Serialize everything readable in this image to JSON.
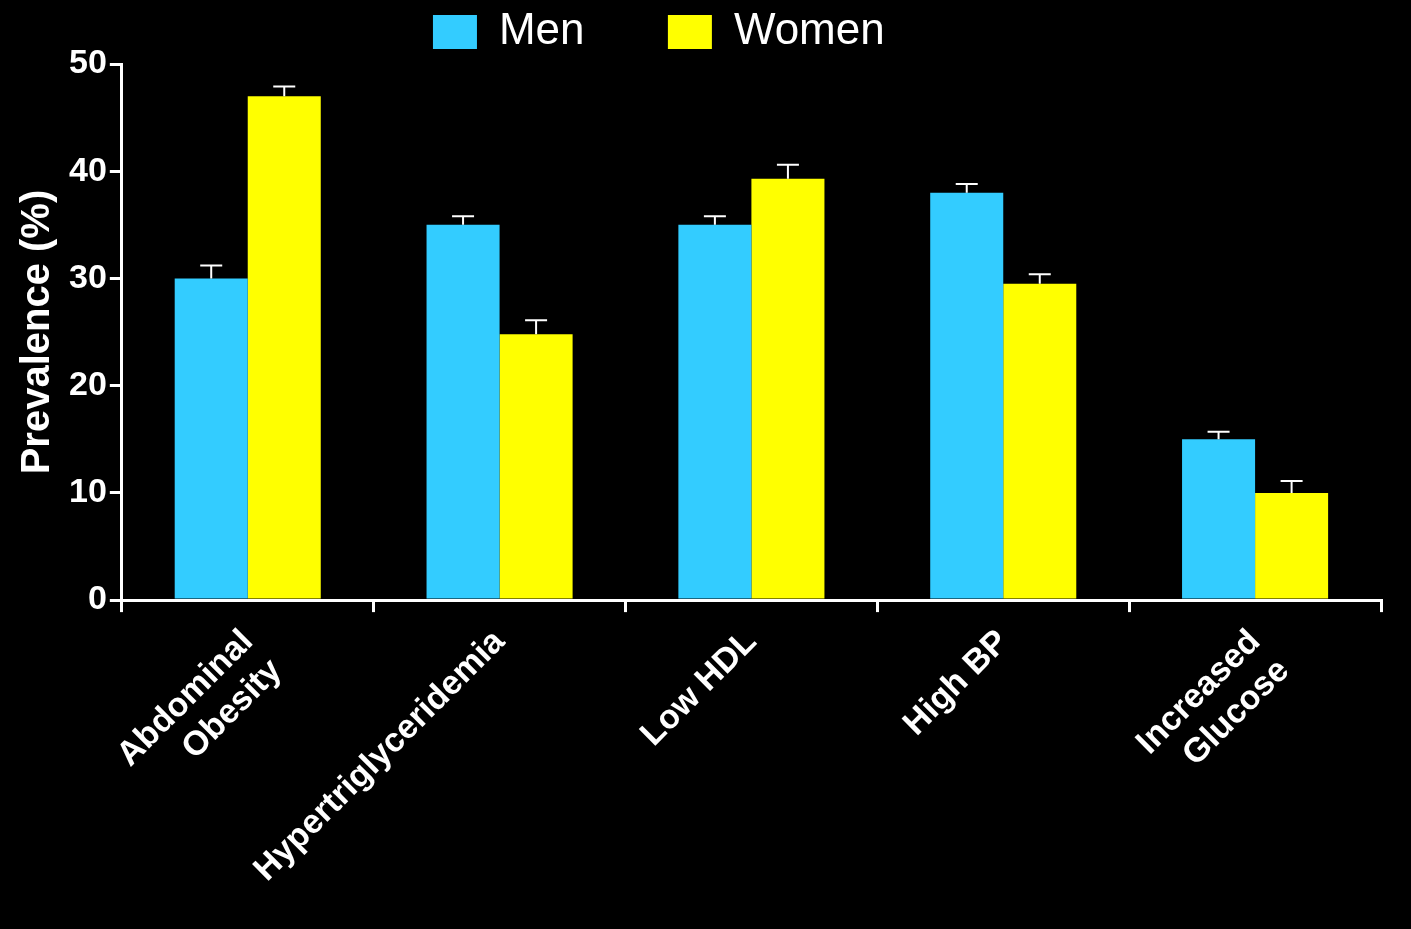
{
  "chart_data": {
    "type": "bar",
    "ylabel": "Prevalence (%)",
    "categories": [
      "Abdominal\nObesity",
      "Hypertriglyceridemia",
      "Low HDL",
      "High BP",
      "Increased\nGlucose"
    ],
    "series": [
      {
        "name": "Men",
        "color": "#33ccff",
        "values": [
          30,
          35,
          35,
          38,
          15
        ],
        "errors": [
          [
            30,
            31.2
          ],
          [
            35,
            35.8
          ],
          [
            35,
            35.8
          ],
          [
            38,
            38.8
          ],
          [
            15,
            15.7
          ]
        ]
      },
      {
        "name": "Women",
        "color": "#ffff00",
        "values": [
          47,
          24.8,
          39.3,
          29.5,
          10
        ],
        "errors": [
          [
            47,
            47.9
          ],
          [
            24.8,
            26.1
          ],
          [
            39.3,
            40.6
          ],
          [
            29.5,
            30.4
          ],
          [
            10,
            11.1
          ]
        ]
      }
    ],
    "ylim": [
      0,
      50
    ],
    "yticks": [
      0,
      10,
      20,
      30,
      40,
      50
    ],
    "grid": false,
    "legend": "top"
  }
}
